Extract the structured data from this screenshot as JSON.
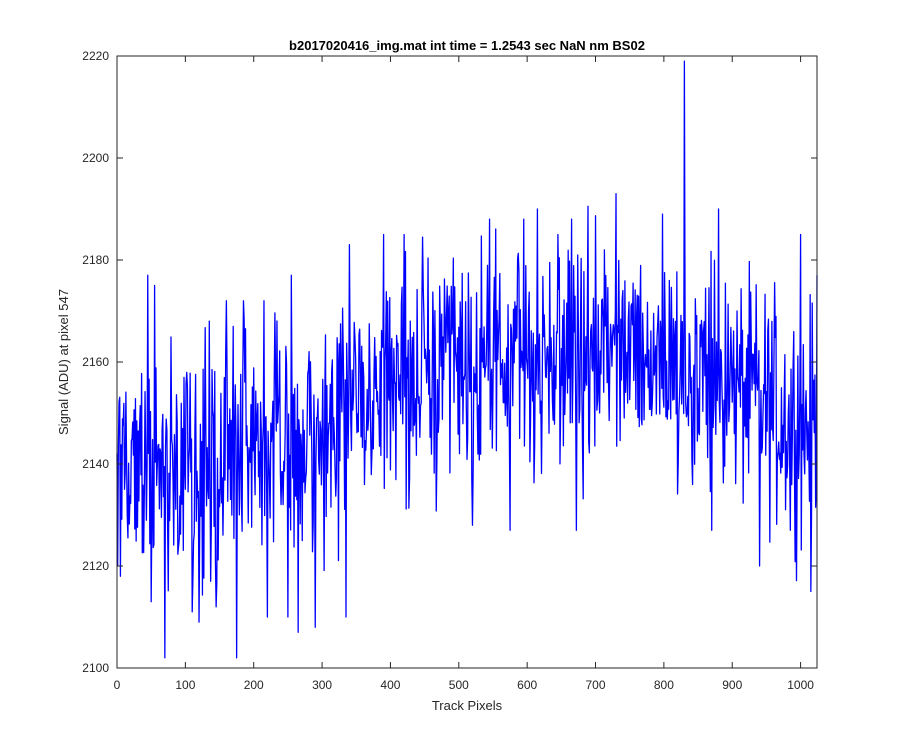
{
  "chart_data": {
    "type": "line",
    "title": "b2017020416_img.mat int time = 1.2543 sec  NaN nm BS02",
    "xlabel": "Track Pixels",
    "ylabel": "Signal (ADU) at pixel 547",
    "xlim": [
      0,
      1024
    ],
    "ylim": [
      2100,
      2220
    ],
    "xticks": [
      0,
      100,
      200,
      300,
      400,
      500,
      600,
      700,
      800,
      900,
      1000
    ],
    "yticks": [
      2100,
      2120,
      2140,
      2160,
      2180,
      2200,
      2220
    ],
    "grid": false,
    "series": [
      {
        "color": "#0000ff",
        "trend": [
          [
            0,
            2142
          ],
          [
            100,
            2141
          ],
          [
            200,
            2143
          ],
          [
            300,
            2148
          ],
          [
            400,
            2156
          ],
          [
            500,
            2158
          ],
          [
            600,
            2160
          ],
          [
            700,
            2162
          ],
          [
            800,
            2161
          ],
          [
            900,
            2155
          ],
          [
            1000,
            2148
          ],
          [
            1024,
            2148
          ]
        ],
        "spread": 11,
        "seed": 547,
        "n_points": 1024,
        "extremes": [
          [
            0,
            2142
          ],
          [
            5,
            2118
          ],
          [
            45,
            2177
          ],
          [
            50,
            2113
          ],
          [
            55,
            2175
          ],
          [
            70,
            2102
          ],
          [
            110,
            2111
          ],
          [
            120,
            2109
          ],
          [
            135,
            2168
          ],
          [
            145,
            2112
          ],
          [
            160,
            2172
          ],
          [
            175,
            2102
          ],
          [
            185,
            2172
          ],
          [
            215,
            2172
          ],
          [
            220,
            2110
          ],
          [
            250,
            2110
          ],
          [
            255,
            2177
          ],
          [
            265,
            2107
          ],
          [
            290,
            2108
          ],
          [
            335,
            2110
          ],
          [
            340,
            2183
          ],
          [
            390,
            2185
          ],
          [
            420,
            2185
          ],
          [
            520,
            2128
          ],
          [
            545,
            2188
          ],
          [
            575,
            2127
          ],
          [
            595,
            2188
          ],
          [
            615,
            2190
          ],
          [
            645,
            2185
          ],
          [
            665,
            2188
          ],
          [
            672,
            2127
          ],
          [
            730,
            2193
          ],
          [
            798,
            2189
          ],
          [
            830,
            2219
          ],
          [
            870,
            2127
          ],
          [
            880,
            2190
          ],
          [
            940,
            2120
          ],
          [
            945,
            2150
          ],
          [
            985,
            2127
          ],
          [
            1000,
            2185
          ],
          [
            1015,
            2115
          ],
          [
            1024,
            2177
          ]
        ]
      }
    ]
  }
}
